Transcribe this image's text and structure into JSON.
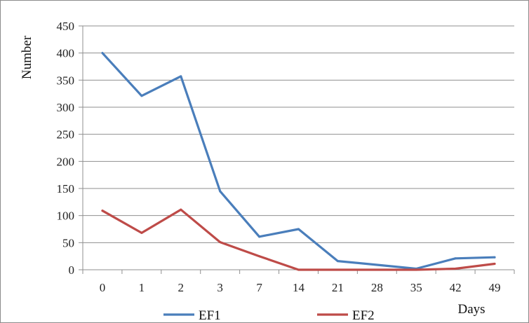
{
  "chart_data": {
    "type": "line",
    "title": "",
    "xlabel": "Days",
    "ylabel": "Number",
    "categories": [
      "0",
      "1",
      "2",
      "3",
      "7",
      "14",
      "21",
      "28",
      "35",
      "42",
      "49"
    ],
    "ylim": [
      0,
      450
    ],
    "yticks": [
      "0",
      "50",
      "100",
      "150",
      "200",
      "250",
      "300",
      "350",
      "400",
      "450"
    ],
    "grid": true,
    "legend_position": "bottom",
    "series": [
      {
        "name": "EF1",
        "color": "#4a7ebb",
        "values": [
          400,
          321,
          357,
          145,
          61,
          75,
          16,
          9,
          2,
          21,
          23
        ]
      },
      {
        "name": "EF2",
        "color": "#be4b48",
        "values": [
          109,
          68,
          111,
          51,
          25,
          0,
          0,
          0,
          0,
          2,
          11
        ]
      }
    ]
  }
}
